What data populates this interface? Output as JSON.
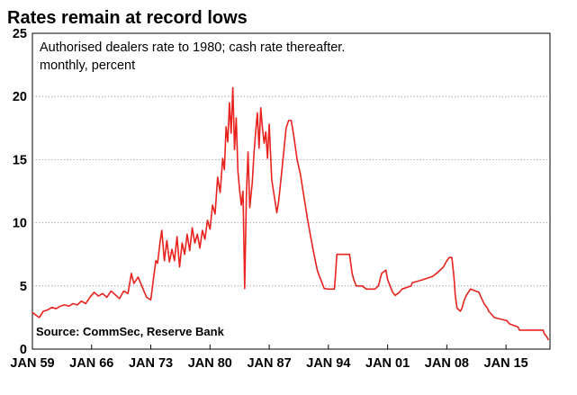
{
  "chart_data": {
    "type": "line",
    "title": "Rates remain at record lows",
    "subtitle_lines": [
      "Authorised dealers rate to 1980; cash rate thereafter.",
      "monthly, percent"
    ],
    "source": "Source: CommSec, Reserve Bank",
    "xlabel": "",
    "ylabel": "",
    "xlim": [
      1959.0,
      2020.2
    ],
    "ylim": [
      0,
      25
    ],
    "grid": true,
    "x_tick_labels": [
      {
        "label": "JAN 59",
        "year": 1959
      },
      {
        "label": "JAN 66",
        "year": 1966
      },
      {
        "label": "JAN 73",
        "year": 1973
      },
      {
        "label": "JAN 80",
        "year": 1980
      },
      {
        "label": "JAN 87",
        "year": 1987
      },
      {
        "label": "JAN 94",
        "year": 1994
      },
      {
        "label": "JAN 01",
        "year": 2001
      },
      {
        "label": "JAN 08",
        "year": 2008
      },
      {
        "label": "JAN 15",
        "year": 2015
      }
    ],
    "y_ticks": [
      0,
      5,
      10,
      15,
      20,
      25
    ],
    "series": [
      {
        "name": "Authorised dealers rate / cash rate",
        "color": "#e8231f",
        "points": [
          [
            1959.0,
            2.9
          ],
          [
            1959.4,
            2.7
          ],
          [
            1959.8,
            2.5
          ],
          [
            1960.3,
            3.0
          ],
          [
            1960.8,
            3.1
          ],
          [
            1961.3,
            3.3
          ],
          [
            1961.8,
            3.2
          ],
          [
            1962.3,
            3.4
          ],
          [
            1962.8,
            3.5
          ],
          [
            1963.3,
            3.4
          ],
          [
            1963.8,
            3.6
          ],
          [
            1964.3,
            3.5
          ],
          [
            1964.8,
            3.8
          ],
          [
            1965.3,
            3.6
          ],
          [
            1965.8,
            4.1
          ],
          [
            1966.3,
            4.5
          ],
          [
            1966.8,
            4.2
          ],
          [
            1967.3,
            4.4
          ],
          [
            1967.8,
            4.1
          ],
          [
            1968.3,
            4.6
          ],
          [
            1968.8,
            4.3
          ],
          [
            1969.3,
            4.0
          ],
          [
            1969.8,
            4.6
          ],
          [
            1970.3,
            4.4
          ],
          [
            1970.7,
            6.0
          ],
          [
            1971.0,
            5.2
          ],
          [
            1971.5,
            5.7
          ],
          [
            1972.0,
            4.9
          ],
          [
            1972.5,
            4.1
          ],
          [
            1973.0,
            3.9
          ],
          [
            1973.3,
            5.5
          ],
          [
            1973.6,
            7.0
          ],
          [
            1973.8,
            6.8
          ],
          [
            1974.1,
            8.5
          ],
          [
            1974.3,
            9.4
          ],
          [
            1974.6,
            7.0
          ],
          [
            1974.9,
            8.6
          ],
          [
            1975.2,
            6.9
          ],
          [
            1975.5,
            7.9
          ],
          [
            1975.8,
            7.0
          ],
          [
            1976.1,
            8.9
          ],
          [
            1976.4,
            6.5
          ],
          [
            1976.7,
            8.4
          ],
          [
            1977.0,
            7.5
          ],
          [
            1977.3,
            9.1
          ],
          [
            1977.6,
            7.8
          ],
          [
            1977.9,
            9.6
          ],
          [
            1978.2,
            8.4
          ],
          [
            1978.5,
            9.1
          ],
          [
            1978.8,
            8.0
          ],
          [
            1979.1,
            9.4
          ],
          [
            1979.4,
            8.7
          ],
          [
            1979.7,
            10.2
          ],
          [
            1980.0,
            9.5
          ],
          [
            1980.3,
            11.4
          ],
          [
            1980.6,
            10.7
          ],
          [
            1980.9,
            13.6
          ],
          [
            1981.2,
            12.4
          ],
          [
            1981.5,
            15.1
          ],
          [
            1981.7,
            14.2
          ],
          [
            1981.9,
            17.6
          ],
          [
            1982.1,
            16.4
          ],
          [
            1982.3,
            19.5
          ],
          [
            1982.5,
            17.1
          ],
          [
            1982.7,
            20.7
          ],
          [
            1982.9,
            15.8
          ],
          [
            1983.1,
            18.3
          ],
          [
            1983.3,
            14.1
          ],
          [
            1983.5,
            12.6
          ],
          [
            1983.7,
            11.4
          ],
          [
            1983.9,
            12.5
          ],
          [
            1984.1,
            4.8
          ],
          [
            1984.3,
            12.1
          ],
          [
            1984.5,
            15.6
          ],
          [
            1984.7,
            11.2
          ],
          [
            1985.0,
            13.2
          ],
          [
            1985.2,
            15.5
          ],
          [
            1985.4,
            17.2
          ],
          [
            1985.6,
            18.7
          ],
          [
            1985.8,
            15.9
          ],
          [
            1986.0,
            19.1
          ],
          [
            1986.2,
            17.5
          ],
          [
            1986.4,
            16.3
          ],
          [
            1986.6,
            17.2
          ],
          [
            1986.8,
            15.1
          ],
          [
            1987.0,
            17.8
          ],
          [
            1987.3,
            13.4
          ],
          [
            1987.6,
            12.1
          ],
          [
            1987.9,
            10.8
          ],
          [
            1988.1,
            11.6
          ],
          [
            1988.4,
            13.5
          ],
          [
            1988.7,
            15.5
          ],
          [
            1989.0,
            17.5
          ],
          [
            1989.3,
            18.1
          ],
          [
            1989.6,
            18.1
          ],
          [
            1989.9,
            16.9
          ],
          [
            1990.3,
            15.0
          ],
          [
            1990.7,
            13.8
          ],
          [
            1991.1,
            12.1
          ],
          [
            1991.5,
            10.4
          ],
          [
            1991.9,
            8.9
          ],
          [
            1992.3,
            7.5
          ],
          [
            1992.7,
            6.2
          ],
          [
            1993.1,
            5.5
          ],
          [
            1993.5,
            4.8
          ],
          [
            1994.0,
            4.75
          ],
          [
            1994.7,
            4.75
          ],
          [
            1994.8,
            5.5
          ],
          [
            1994.9,
            6.5
          ],
          [
            1995.0,
            7.5
          ],
          [
            1996.5,
            7.5
          ],
          [
            1996.6,
            7.0
          ],
          [
            1996.8,
            6.0
          ],
          [
            1997.0,
            5.5
          ],
          [
            1997.3,
            5.0
          ],
          [
            1998.0,
            5.0
          ],
          [
            1998.5,
            4.75
          ],
          [
            1999.5,
            4.75
          ],
          [
            1999.9,
            5.0
          ],
          [
            2000.1,
            5.5
          ],
          [
            2000.3,
            6.0
          ],
          [
            2000.8,
            6.25
          ],
          [
            2001.0,
            5.5
          ],
          [
            2001.3,
            5.0
          ],
          [
            2001.6,
            4.5
          ],
          [
            2001.9,
            4.25
          ],
          [
            2002.4,
            4.5
          ],
          [
            2002.7,
            4.75
          ],
          [
            2003.8,
            5.0
          ],
          [
            2003.9,
            5.25
          ],
          [
            2005.2,
            5.5
          ],
          [
            2006.3,
            5.75
          ],
          [
            2006.8,
            6.0
          ],
          [
            2007.6,
            6.5
          ],
          [
            2008.0,
            7.0
          ],
          [
            2008.3,
            7.25
          ],
          [
            2008.6,
            7.25
          ],
          [
            2008.8,
            6.0
          ],
          [
            2008.9,
            5.25
          ],
          [
            2009.0,
            4.25
          ],
          [
            2009.2,
            3.25
          ],
          [
            2009.6,
            3.0
          ],
          [
            2009.8,
            3.25
          ],
          [
            2010.0,
            3.75
          ],
          [
            2010.3,
            4.25
          ],
          [
            2010.8,
            4.75
          ],
          [
            2011.8,
            4.5
          ],
          [
            2011.95,
            4.25
          ],
          [
            2012.3,
            3.75
          ],
          [
            2012.5,
            3.5
          ],
          [
            2012.8,
            3.25
          ],
          [
            2012.95,
            3.0
          ],
          [
            2013.3,
            2.75
          ],
          [
            2013.6,
            2.5
          ],
          [
            2015.1,
            2.25
          ],
          [
            2015.4,
            2.0
          ],
          [
            2016.4,
            1.75
          ],
          [
            2016.6,
            1.5
          ],
          [
            2019.4,
            1.5
          ],
          [
            2019.5,
            1.25
          ],
          [
            2019.8,
            1.0
          ],
          [
            2020.0,
            0.75
          ]
        ]
      }
    ]
  }
}
